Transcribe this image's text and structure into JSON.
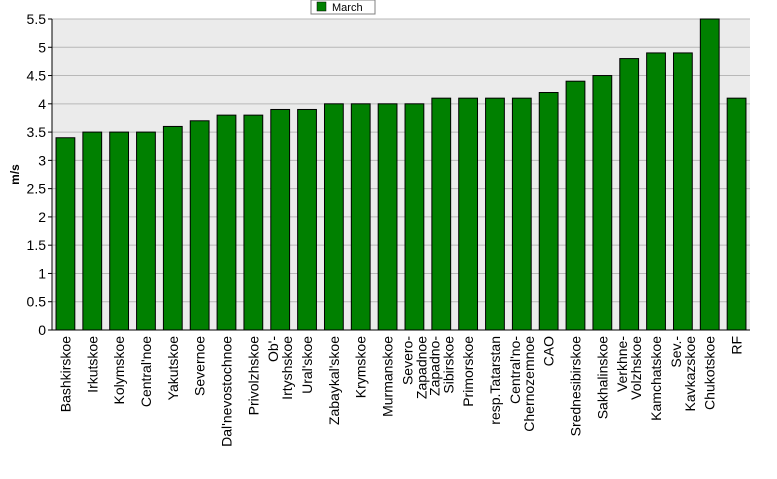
{
  "chart_data": {
    "type": "bar",
    "ylabel": "m/s",
    "xlabel": "",
    "ylim": [
      0,
      5.5
    ],
    "yticks": [
      "0",
      "0.5",
      "1",
      "1.5",
      "2",
      "2.5",
      "3",
      "3.5",
      "4",
      "4.5",
      "5",
      "5.5"
    ],
    "grid": true,
    "legend_position": "top-center",
    "categories": [
      "Bashkirskoe",
      "Irkutskoe",
      "Kolymskoe",
      "Central'noe",
      "Yakutskoe",
      "Severnoe",
      "Dal'nevostochnoe",
      "Privolzhskoe",
      "Ob'-\nIrtyshskoe",
      "Ural'skoe",
      "Zabaykal'skoe",
      "Krymskoe",
      "Murmanskoe",
      "Severo-\nZapadnoe",
      "Zapadno-\nSibirskoe",
      "Primorskoe",
      "resp.Tatarstan",
      "Central'no-\nChernozemnoe",
      "CAO",
      "Srednesibirskoe",
      "Sakhalinskoe",
      "Verkhne-\nVolzhskoe",
      "Kamchatskoe",
      "Sev.-\nKavkazskoe",
      "Chukotskoe",
      "RF"
    ],
    "series": [
      {
        "name": "March",
        "color": "#008000",
        "values": [
          3.4,
          3.5,
          3.5,
          3.5,
          3.6,
          3.7,
          3.8,
          3.8,
          3.9,
          3.9,
          4.0,
          4.0,
          4.0,
          4.0,
          4.1,
          4.1,
          4.1,
          4.1,
          4.2,
          4.4,
          4.5,
          4.8,
          4.9,
          4.9,
          5.5,
          4.1
        ]
      }
    ],
    "colors": {
      "bar": "#008000",
      "plot_bg": "#ebebeb",
      "grid": "#b8b8b8"
    }
  }
}
